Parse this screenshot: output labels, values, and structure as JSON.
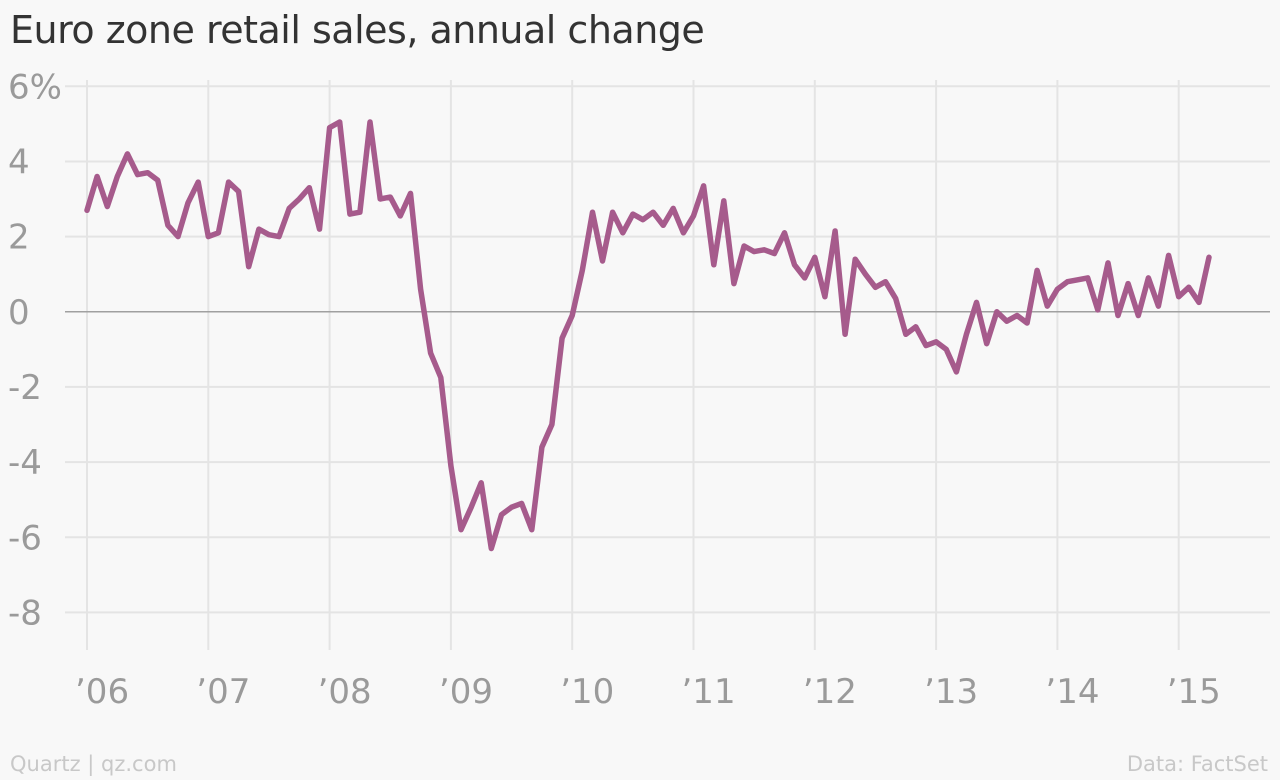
{
  "title": "Euro zone retail sales, annual change",
  "footer": {
    "credit": "Quartz | qz.com",
    "source": "Data: FactSet"
  },
  "colors": {
    "line": "#a65b8c",
    "grid": "#e4e4e4",
    "zero_line": "#a0a0a0",
    "tick_text": "#9a9a9a",
    "background": "#f8f8f8"
  },
  "chart_data": {
    "type": "line",
    "title": "Euro zone retail sales, annual change",
    "xlabel": "",
    "ylabel": "",
    "grid": true,
    "ylim": [
      -9,
      6.3
    ],
    "xlim": [
      2005.9,
      2015.75
    ],
    "y_ticks": [
      6,
      4,
      2,
      0,
      -2,
      -4,
      -6,
      -8
    ],
    "y_tick_labels": [
      "6%",
      "4",
      "2",
      "0",
      "-2",
      "-4",
      "-6",
      "-8"
    ],
    "x_ticks": [
      2006,
      2007,
      2008,
      2009,
      2010,
      2011,
      2012,
      2013,
      2014,
      2015
    ],
    "x_tick_labels": [
      "’06",
      "’07",
      "’08",
      "’09",
      "’10",
      "’11",
      "’12",
      "’13",
      "’14",
      "’15"
    ],
    "series": [
      {
        "x": [
          2006.0,
          2006.083,
          2006.167,
          2006.25,
          2006.333,
          2006.417,
          2006.5,
          2006.583,
          2006.667,
          2006.75,
          2006.833,
          2006.917,
          2007.0,
          2007.083,
          2007.167,
          2007.25,
          2007.333,
          2007.417,
          2007.5,
          2007.583,
          2007.667,
          2007.75,
          2007.833,
          2007.917,
          2008.0,
          2008.083,
          2008.167,
          2008.25,
          2008.333,
          2008.417,
          2008.5,
          2008.583,
          2008.667,
          2008.75,
          2008.833,
          2008.917,
          2009.0,
          2009.083,
          2009.167,
          2009.25,
          2009.333,
          2009.417,
          2009.5,
          2009.583,
          2009.667,
          2009.75,
          2009.833,
          2009.917,
          2010.0,
          2010.083,
          2010.167,
          2010.25,
          2010.333,
          2010.417,
          2010.5,
          2010.583,
          2010.667,
          2010.75,
          2010.833,
          2010.917,
          2011.0,
          2011.083,
          2011.167,
          2011.25,
          2011.333,
          2011.417,
          2011.5,
          2011.583,
          2011.667,
          2011.75,
          2011.833,
          2011.917,
          2012.0,
          2012.083,
          2012.167,
          2012.25,
          2012.333,
          2012.417,
          2012.5,
          2012.583,
          2012.667,
          2012.75,
          2012.833,
          2012.917,
          2013.0,
          2013.083,
          2013.167,
          2013.25,
          2013.333,
          2013.417,
          2013.5,
          2013.583,
          2013.667,
          2013.75,
          2013.833,
          2013.917,
          2014.0,
          2014.083,
          2014.167,
          2014.25,
          2014.333,
          2014.417,
          2014.5,
          2014.583,
          2014.667,
          2014.75,
          2014.833,
          2014.917,
          2015.0,
          2015.083,
          2015.167,
          2015.25
        ],
        "values": [
          2.7,
          3.6,
          2.8,
          3.6,
          4.2,
          3.65,
          3.7,
          3.5,
          2.3,
          2.0,
          2.9,
          3.45,
          2.0,
          2.1,
          3.45,
          3.2,
          1.2,
          2.2,
          2.05,
          2.0,
          2.75,
          3.0,
          3.3,
          2.2,
          4.9,
          5.05,
          2.6,
          2.65,
          5.05,
          3.0,
          3.05,
          2.55,
          3.15,
          0.6,
          -1.1,
          -1.75,
          -4.1,
          -5.8,
          -5.2,
          -4.55,
          -6.3,
          -5.4,
          -5.2,
          -5.1,
          -5.8,
          -3.6,
          -3.0,
          -0.7,
          -0.1,
          1.1,
          2.65,
          1.35,
          2.65,
          2.1,
          2.6,
          2.45,
          2.65,
          2.3,
          2.75,
          2.1,
          2.55,
          3.35,
          1.25,
          2.95,
          0.75,
          1.75,
          1.6,
          1.65,
          1.55,
          2.1,
          1.25,
          0.9,
          1.45,
          0.4,
          2.15,
          -0.6,
          1.4,
          1.0,
          0.65,
          0.8,
          0.35,
          -0.6,
          -0.4,
          -0.9,
          -0.8,
          -1.0,
          -1.6,
          -0.6,
          0.25,
          -0.85,
          0.0,
          -0.25,
          -0.1,
          -0.3,
          1.1,
          0.15,
          0.6,
          0.8,
          0.85,
          0.9,
          0.05,
          1.3,
          -0.1,
          0.75,
          -0.1,
          0.9,
          0.15,
          1.5,
          0.4,
          0.65,
          0.25,
          1.45
        ]
      }
    ]
  }
}
